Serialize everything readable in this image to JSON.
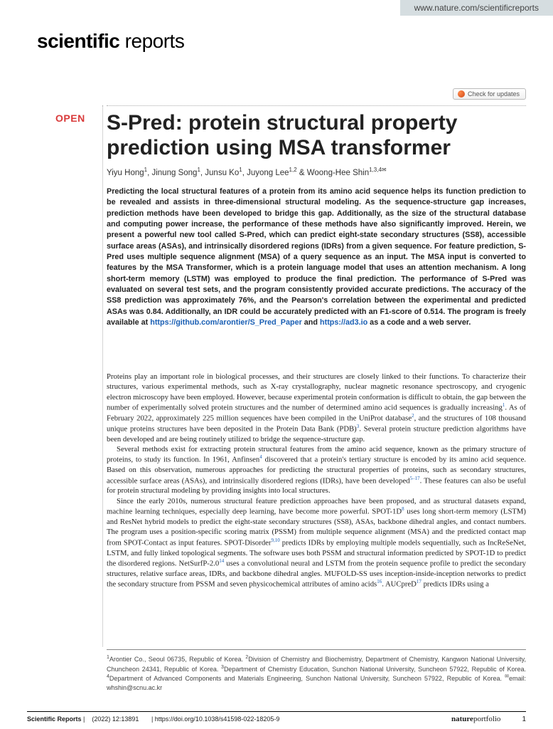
{
  "url_banner": "www.nature.com/scientificreports",
  "journal_logo_bold": "scientific",
  "journal_logo_light": " reports",
  "check_updates": "Check for updates",
  "open_badge": "OPEN",
  "title": "S-Pred: protein structural property prediction using MSA transformer",
  "authors_html": "Yiyu Hong<sup>1</sup>, Jinung Song<sup>1</sup>, Junsu Ko<sup>1</sup>, Juyong Lee<sup>1,2</sup> & Woong-Hee Shin<sup>1,3,4✉</sup>",
  "abstract_pre": "Predicting the local structural features of a protein from its amino acid sequence helps its function prediction to be revealed and assists in three-dimensional structural modeling. As the sequence-structure gap increases, prediction methods have been developed to bridge this gap. Additionally, as the size of the structural database and computing power increase, the performance of these methods have also significantly improved. Herein, we present a powerful new tool called S-Pred, which can predict eight-state secondary structures (SS8), accessible surface areas (ASAs), and intrinsically disordered regions (IDRs) from a given sequence. For feature prediction, S-Pred uses multiple sequence alignment (MSA) of a query sequence as an input. The MSA input is converted to features by the MSA Transformer, which is a protein language model that uses an attention mechanism. A long short-term memory (LSTM) was employed to produce the final prediction. The performance of S-Pred was evaluated on several test sets, and the program consistently provided accurate predictions. The accuracy of the SS8 prediction was approximately 76%, and the Pearson's correlation between the experimental and predicted ASAs was 0.84. Additionally, an IDR could be accurately predicted with an F1-score of 0.514. The program is freely available at ",
  "abstract_link1": "https://github.com/arontier/S_Pred_Paper",
  "abstract_mid": " and ",
  "abstract_link2": "https://ad3.io",
  "abstract_post": " as a code and a web server.",
  "body_p1": "Proteins play an important role in biological processes, and their structures are closely linked to their functions. To characterize their structures, various experimental methods, such as X-ray crystallography, nuclear magnetic resonance spectroscopy, and cryogenic electron microscopy have been employed. However, because experimental protein conformation is difficult to obtain, the gap between the number of experimentally solved protein structures and the number of determined amino acid sequences is gradually increasing",
  "body_p1_mid": ". As of February 2022, approximately 225 million sequences have been compiled in the UniProt database",
  "body_p1_mid2": ", and the structures of 108 thousand unique proteins structures have been deposited in the Protein Data Bank (PDB)",
  "body_p1_end": ". Several protein structure prediction algorithms have been developed and are being routinely utilized to bridge the sequence-structure gap.",
  "body_p2_a": "Several methods exist for extracting protein structural features from the amino acid sequence, known as the primary structure of proteins, to study its function. In 1961, Anfinsen",
  "body_p2_b": " discovered that a protein's tertiary structure is encoded by its amino acid sequence. Based on this observation, numerous approaches for predicting the structural properties of proteins, such as secondary structures, accessible surface areas (ASAs), and intrinsically disordered regions (IDRs), have been developed",
  "body_p2_c": ". These features can also be useful for protein structural modeling by providing insights into local structures.",
  "body_p3_a": "Since the early 2010s, numerous structural feature prediction approaches have been proposed, and as structural datasets expand, machine learning techniques, especially deep learning, have become more powerful. SPOT-1D",
  "body_p3_b": " uses long short-term memory (LSTM) and ResNet hybrid models to predict the eight-state secondary structures (SS8), ASAs, backbone dihedral angles, and contact numbers. The program uses a position-specific scoring matrix (PSSM) from multiple sequence alignment (MSA) and the predicted contact map from SPOT-Contact as input features. SPOT-Disorder",
  "body_p3_c": " predicts IDRs by employing multiple models sequentially, such as IncReSeNet, LSTM, and fully linked topological segments. The software uses both PSSM and structural information predicted by SPOT-1D to predict the disordered regions. NetSurfP-2.0",
  "body_p3_d": " uses a convolutional neural and LSTM from the protein sequence profile to predict the secondary structures, relative surface areas, IDRs, and backbone dihedral angles. MUFOLD-SS uses inception-inside-inception networks to predict the secondary structure from PSSM and seven physicochemical attributes of amino acids",
  "body_p3_e": ". AUCpreD",
  "body_p3_f": " predicts IDRs using a",
  "sup1": "1",
  "sup2": "2",
  "sup3": "3",
  "sup4": "4",
  "sup5_17": "5–17",
  "sup8": "8",
  "sup9_10": "9,10",
  "sup14": "14",
  "sup16": "16",
  "sup17": "17",
  "affiliations": "<sup>1</sup>Arontier Co., Seoul 06735, Republic of Korea. <sup>2</sup>Division of Chemistry and Biochemistry, Department of Chemistry, Kangwon National University, Chuncheon 24341, Republic of Korea. <sup>3</sup>Department of Chemistry Education, Sunchon National University, Suncheon 57922, Republic of Korea. <sup>4</sup>Department of Advanced Components and Materials Engineering, Sunchon National University, Suncheon 57922, Republic of Korea. <sup>✉</sup>email: whshin@scnu.ac.kr",
  "footer_journal": "Scientific Reports",
  "footer_citation": "(2022) 12:13891",
  "footer_doi": "| https://doi.org/10.1038/s41598-022-18205-9",
  "footer_brand_b": "nature",
  "footer_brand_l": "portfolio",
  "footer_page": "1"
}
